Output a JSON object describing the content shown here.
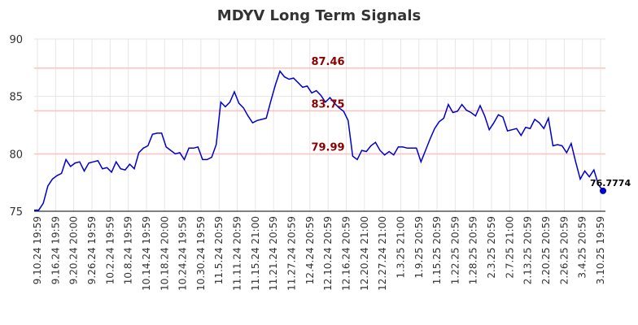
{
  "chart_data": {
    "type": "line",
    "title": "MDYV Long Term Signals",
    "ylim": [
      75,
      90
    ],
    "yticks": [
      75,
      80,
      85,
      90
    ],
    "grid": true,
    "xticks": [
      "9.10.24 19:59",
      "9.16.24 19:59",
      "9.20.24 20:00",
      "9.26.24 19:59",
      "10.2.24 19:59",
      "10.8.24 19:59",
      "10.14.24 19:59",
      "10.18.24 20:00",
      "10.24.24 19:59",
      "10.30.24 19:59",
      "11.5.24 20:59",
      "11.11.24 20:59",
      "11.15.24 21:00",
      "11.21.24 20:59",
      "11.27.24 20:59",
      "12.4.24 20:59",
      "12.10.24 20:59",
      "12.16.24 20:59",
      "12.20.24 21:00",
      "12.27.24 21:00",
      "1.3.25 21:00",
      "1.9.25 20:59",
      "1.15.25 20:59",
      "1.22.25 20:59",
      "1.28.25 20:59",
      "2.3.25 20:59",
      "2.7.25 21:00",
      "2.13.25 20:59",
      "2.20.25 20:59",
      "2.26.25 20:59",
      "3.4.25 20:59",
      "3.10.25 19:59"
    ],
    "signals": [
      {
        "value": 87.46,
        "label": "87.46"
      },
      {
        "value": 83.75,
        "label": "83.75"
      },
      {
        "value": 79.99,
        "label": "79.99"
      }
    ],
    "last_value_label": "76.7774",
    "colors": {
      "line": "#0000cc",
      "signal_line": "#ffc0c0",
      "signal_label": "#8b0000",
      "last_point": "#0000cc"
    },
    "series": [
      {
        "values": [
          75.1,
          75.1,
          75.7,
          77.2,
          77.8,
          78.1,
          78.3,
          79.5,
          78.9,
          79.2,
          79.3,
          78.5,
          79.2,
          79.3,
          79.4,
          78.7,
          78.8,
          78.4,
          79.3,
          78.7,
          78.6,
          79.1,
          78.7,
          80.1,
          80.5,
          80.7,
          81.7,
          81.8,
          81.8,
          80.6,
          80.3,
          80.0,
          80.1,
          79.5,
          80.5,
          80.5,
          80.6,
          79.5,
          79.5,
          79.7,
          80.8,
          84.5,
          84.1,
          84.5,
          85.4,
          84.4,
          84.0,
          83.3,
          82.7,
          82.9,
          83.0,
          83.1,
          84.6,
          86.0,
          87.2,
          86.7,
          86.5,
          86.6,
          86.2,
          85.8,
          85.9,
          85.3,
          85.5,
          85.1,
          84.5,
          84.9,
          84.4,
          84.0,
          83.7,
          82.9,
          79.8,
          79.5,
          80.3,
          80.2,
          80.7,
          81.0,
          80.3,
          79.9,
          80.2,
          79.9,
          80.6,
          80.6,
          80.5,
          80.5,
          80.5,
          79.3,
          80.3,
          81.3,
          82.2,
          82.8,
          83.1,
          84.3,
          83.6,
          83.7,
          84.3,
          83.8,
          83.6,
          83.3,
          84.2,
          83.3,
          82.1,
          82.7,
          83.4,
          83.2,
          82.0,
          82.1,
          82.2,
          81.6,
          82.3,
          82.2,
          83.0,
          82.7,
          82.2,
          83.1,
          80.7,
          80.8,
          80.7,
          80.1,
          80.9,
          79.3,
          77.8,
          78.5,
          78.0,
          78.6,
          77.3,
          76.7774
        ]
      }
    ]
  }
}
